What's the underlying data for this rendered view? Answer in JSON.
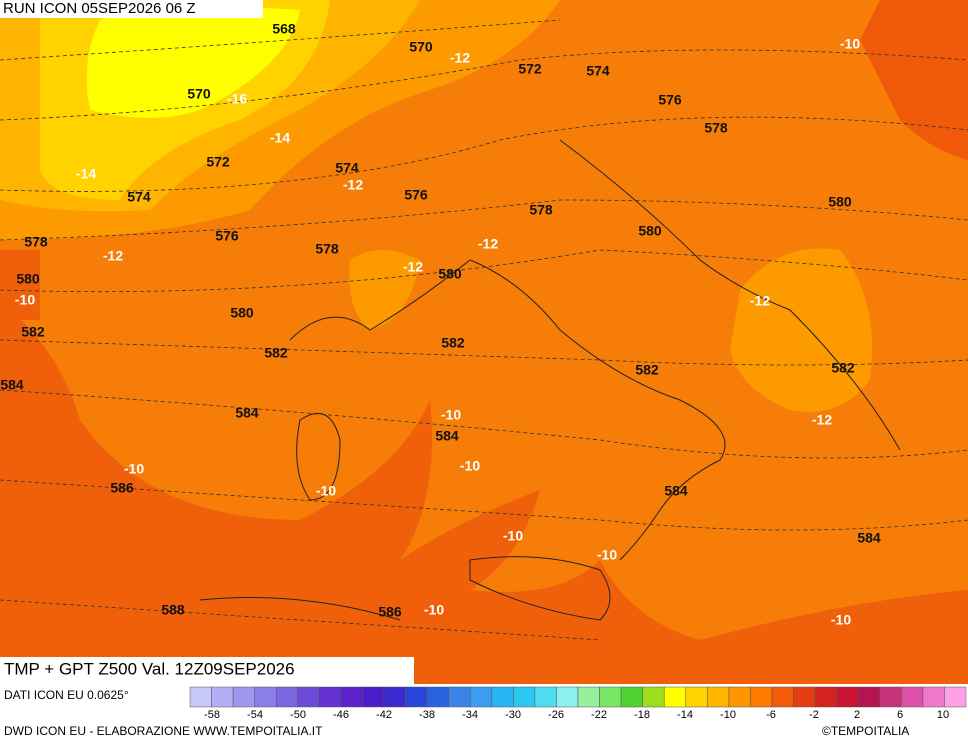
{
  "header": {
    "run": "RUN ICON 05SEP2026 06 Z",
    "field": "TMP + GPT Z500 Val. 12Z09SEP2026"
  },
  "map": {
    "height_labels": [
      568,
      570,
      570,
      572,
      574,
      576,
      578,
      572,
      574,
      574,
      576,
      578,
      580,
      576,
      578,
      580,
      580,
      578,
      580,
      582,
      580,
      582,
      582,
      582,
      582,
      584,
      584,
      584,
      584,
      586,
      586,
      588,
      584
    ],
    "temp_labels": [
      -10,
      -12,
      -16,
      -14,
      -14,
      -12,
      -12,
      -12,
      -12,
      -10,
      -12,
      -12,
      -10,
      -10,
      -10,
      -10,
      -10,
      -10,
      -10,
      -10
    ]
  },
  "legend": {
    "source": "DATI ICON EU 0.0625°",
    "ticks": [
      -58,
      -54,
      -50,
      -46,
      -42,
      -38,
      -34,
      -30,
      -26,
      -22,
      -18,
      -14,
      -10,
      -6,
      -2,
      2,
      6,
      10
    ],
    "colors": [
      "#c8c8f8",
      "#b4aef5",
      "#a096f0",
      "#8c7ee8",
      "#7d64e1",
      "#6e4ad8",
      "#6432d2",
      "#5a22c8",
      "#4b1ec8",
      "#3c2ad0",
      "#2846d8",
      "#2864e0",
      "#3c82e8",
      "#3c9cf0",
      "#28b4f0",
      "#28c8f0",
      "#50dcf0",
      "#8cf0f0",
      "#96f0a0",
      "#78e664",
      "#50d232",
      "#a0dc1e",
      "#ffff00",
      "#ffd200",
      "#ffb400",
      "#ff9600",
      "#ff7800",
      "#f55a0a",
      "#e63c14",
      "#d2231e",
      "#c81432",
      "#b41450",
      "#c83278",
      "#dc50aa",
      "#f078c8",
      "#ffa0e6"
    ]
  },
  "footer": {
    "credit": "DWD ICON EU - ELABORAZIONE WWW.TEMPOITALIA.IT",
    "copyright": "©TEMPOITALIA"
  }
}
